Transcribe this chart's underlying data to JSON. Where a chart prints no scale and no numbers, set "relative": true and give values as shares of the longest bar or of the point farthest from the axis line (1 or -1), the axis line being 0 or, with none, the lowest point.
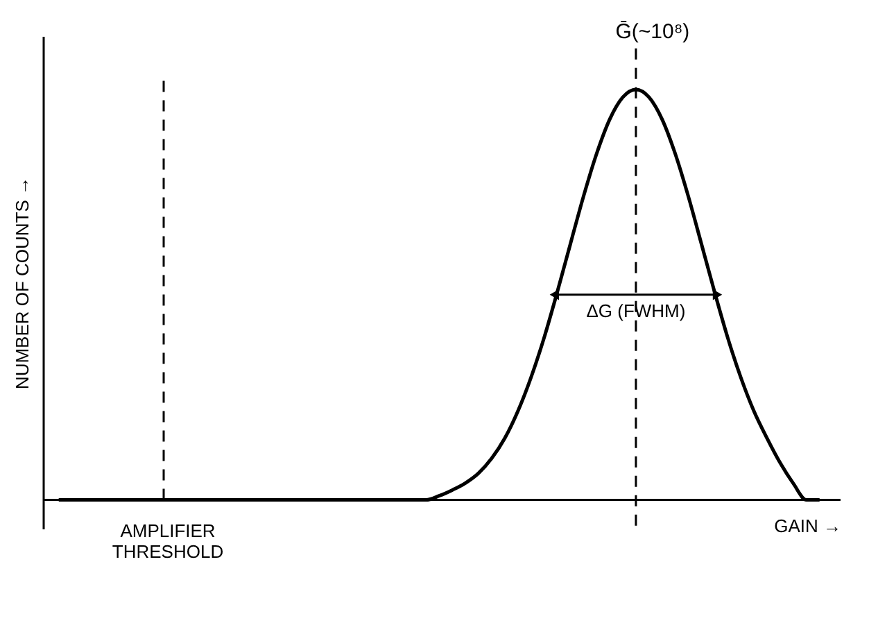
{
  "chart_data": {
    "type": "line",
    "relative": true,
    "xlabel": "GAIN →",
    "ylabel": "NUMBER OF COUNTS →",
    "categories": [
      null,
      null,
      null,
      null,
      null,
      null,
      null,
      null,
      null,
      null,
      null,
      null,
      null,
      null,
      null,
      null,
      null,
      null,
      null,
      null,
      null,
      null,
      null,
      null,
      null,
      null,
      null,
      null,
      null,
      null,
      null,
      null,
      null,
      null,
      null,
      null,
      null,
      null,
      null,
      null,
      null,
      null,
      null,
      null,
      null,
      null,
      null,
      null,
      null,
      null,
      null,
      null,
      null,
      null,
      null,
      null,
      null,
      null,
      null
    ],
    "series": [
      {
        "color": "#000000",
        "values": [
          0,
          0,
          0,
          0,
          0,
          0,
          0,
          0,
          0,
          0,
          0,
          0,
          0,
          0,
          0,
          0,
          0,
          0,
          0,
          0,
          0,
          0,
          0,
          0,
          0,
          0,
          0,
          0,
          0,
          0.01,
          0.024,
          0.041,
          0.065,
          0.101,
          0.15,
          0.216,
          0.298,
          0.395,
          0.506,
          0.623,
          0.739,
          0.843,
          0.927,
          0.981,
          1,
          0.981,
          0.927,
          0.843,
          0.739,
          0.623,
          0.506,
          0.395,
          0.298,
          0.216,
          0.15,
          0.09,
          0.04,
          0,
          0
        ]
      }
    ],
    "annotations": [
      "AMPLIFIER THRESHOLD",
      "Ḡ(~10⁸)",
      "ΔG (FWHM)"
    ],
    "grid": false,
    "tick_labels": false,
    "marker": "none",
    "line_style": "solid"
  }
}
